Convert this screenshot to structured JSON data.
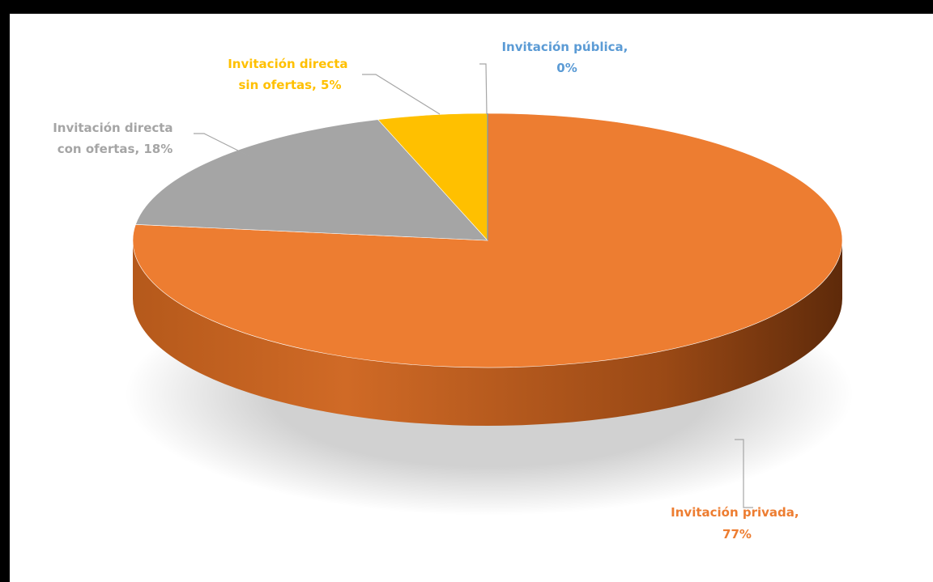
{
  "chart_data": {
    "type": "pie",
    "style": "3d",
    "start_angle_deg": 0,
    "direction": "clockwise",
    "slices": [
      {
        "label": "Invitación privada",
        "value": 77,
        "display": "77%",
        "color": "#ED7D31",
        "label_color": "#ED7D31"
      },
      {
        "label": "Invitación directa con ofertas",
        "value": 18,
        "display": "18%",
        "color": "#A5A5A5",
        "label_color": "#A5A5A5"
      },
      {
        "label": "Invitación directa sin ofertas",
        "value": 5,
        "display": "5%",
        "color": "#FFC000",
        "label_color": "#FFC000"
      },
      {
        "label": "Invitación pública",
        "value": 0,
        "display": "0%",
        "color": "#5B9BD5",
        "label_color": "#5B9BD5"
      }
    ],
    "data_labels": [
      {
        "line1": "Invitación  directa",
        "line2": "con ofertas, 18%"
      },
      {
        "line1": "Invitación  directa",
        "line2": "sin ofertas, 5%"
      },
      {
        "line1": "Invitación  pública,",
        "line2": "0%"
      },
      {
        "line1": "Invitación  privada,",
        "line2": "77%"
      }
    ]
  }
}
